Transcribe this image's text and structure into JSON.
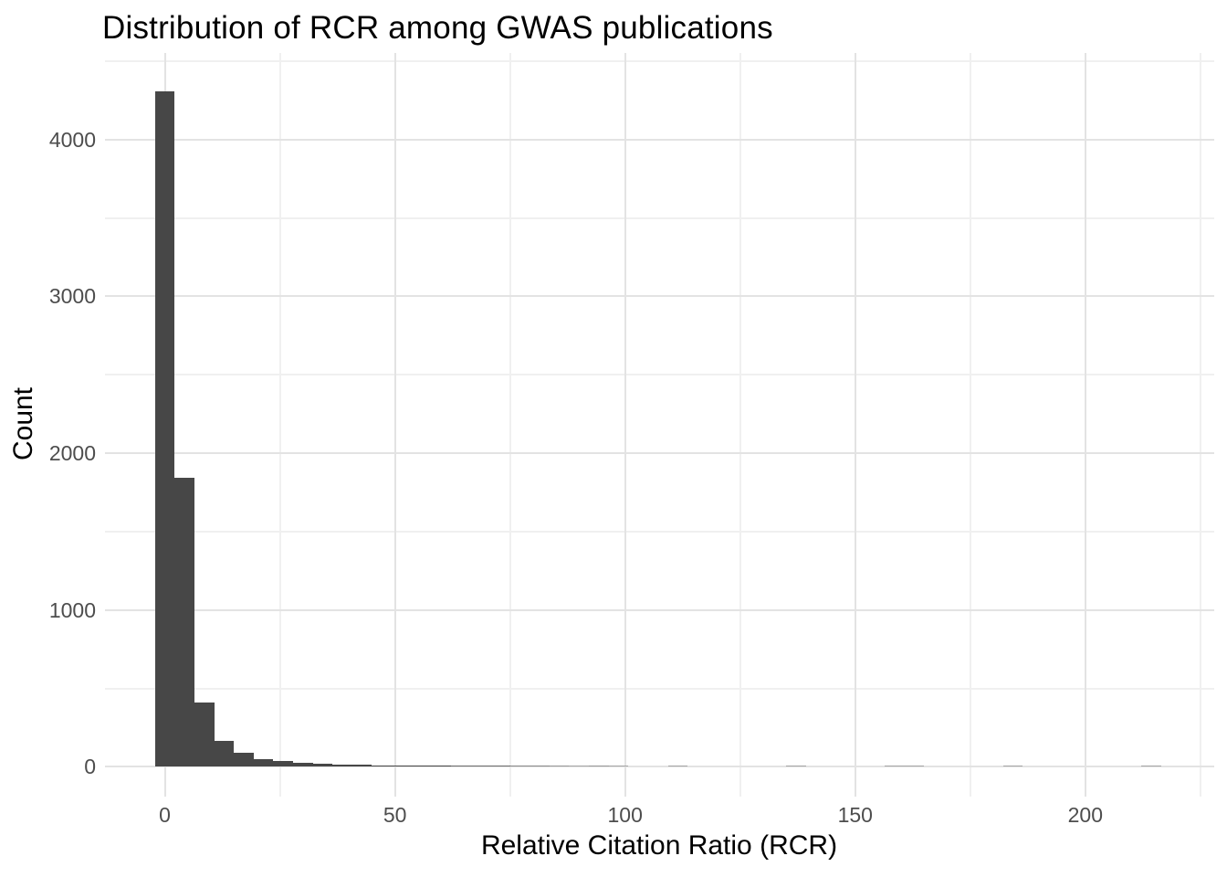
{
  "figure": {
    "title": "Distribution of RCR among GWAS publications",
    "xlabel": "Relative Citation Ratio (RCR)",
    "ylabel": "Count"
  },
  "chart_data": {
    "type": "bar",
    "subtype": "histogram",
    "title": "Distribution of RCR among GWAS publications",
    "xlabel": "Relative Citation Ratio (RCR)",
    "ylabel": "Count",
    "bin_width": 4.286,
    "bin_centers": [
      0,
      4.29,
      8.57,
      12.86,
      17.14,
      21.43,
      25.71,
      30.0,
      34.29,
      38.57,
      42.86,
      47.14,
      51.43,
      55.71,
      60.0,
      64.29,
      68.57,
      72.86,
      77.14,
      81.43,
      85.71,
      90.0,
      94.29,
      98.57,
      102.86,
      107.14,
      111.43,
      115.71,
      120.0,
      124.29,
      128.57,
      132.86,
      137.14,
      141.43,
      145.71,
      150.0,
      154.29,
      158.57,
      162.86,
      167.14,
      171.43,
      175.71,
      180.0,
      184.29,
      188.57,
      192.86,
      197.14,
      201.43,
      205.71,
      210.0,
      214.29
    ],
    "counts": [
      4310,
      1845,
      412,
      168,
      88,
      48,
      36,
      26,
      20,
      15,
      12,
      10,
      8,
      7,
      6,
      5,
      5,
      5,
      3,
      3,
      2,
      1,
      2,
      1,
      0,
      0,
      1,
      0,
      0,
      0,
      0,
      0,
      1,
      0,
      0,
      0,
      0,
      1,
      1,
      0,
      0,
      0,
      0,
      1,
      0,
      0,
      0,
      0,
      0,
      0,
      1
    ],
    "x_ticks": [
      0,
      50,
      100,
      150,
      200
    ],
    "y_ticks": [
      0,
      1000,
      2000,
      3000,
      4000
    ],
    "x_minor_ticks": [
      25,
      75,
      125,
      175,
      225
    ],
    "y_minor_ticks": [
      500,
      1500,
      2500,
      3500,
      4500
    ],
    "xlim": [
      -13,
      228
    ],
    "ylim": [
      -190,
      4552
    ],
    "grid": "major and minor, light gray on white",
    "legend": "none",
    "colors": {
      "bar_fill": "#474747",
      "grid_major": "#e3e3e3",
      "grid_minor": "#f0f0f0",
      "axis_text": "#4d4d4d",
      "title_text": "#000000",
      "background": "#ffffff"
    }
  }
}
